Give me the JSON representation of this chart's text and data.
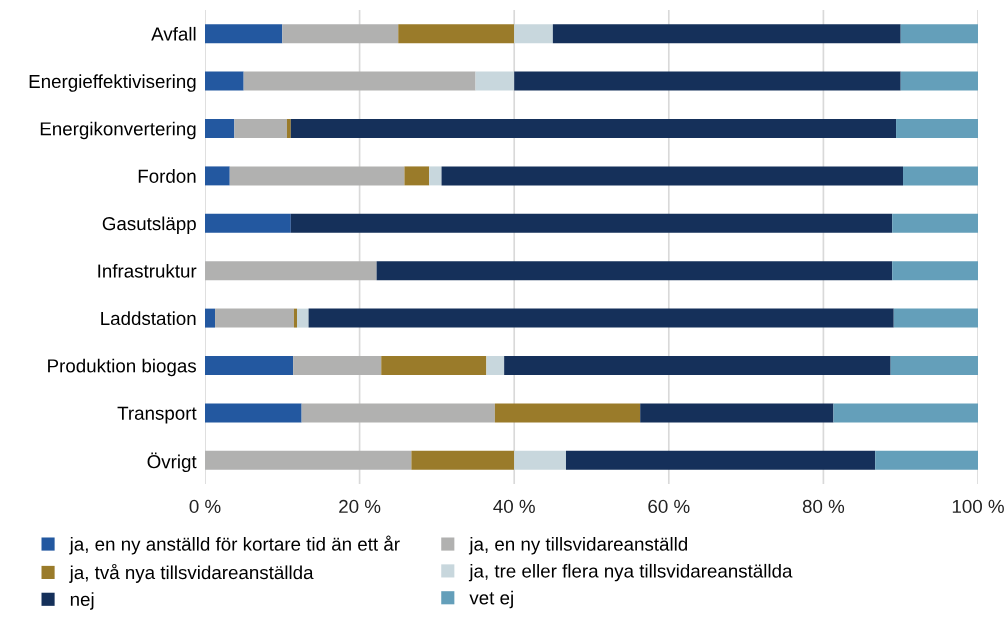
{
  "chart_data": {
    "type": "bar",
    "orientation": "horizontal",
    "stacked": true,
    "categories": [
      "Avfall",
      "Energieffektivisering",
      "Energikonvertering",
      "Fordon",
      "Gasutsläpp",
      "Infrastruktur",
      "Laddstation",
      "Produktion biogas",
      "Transport",
      "Övrigt"
    ],
    "series": [
      {
        "name": "ja, en ny anställd för kortare tid än ett år",
        "color": "#2358a0",
        "values": [
          10,
          5,
          3.8,
          3.2,
          11.1,
          0,
          1.3,
          11.4,
          12.5,
          0
        ]
      },
      {
        "name": "ja, en ny tillsvidareanställd",
        "color": "#b1b1b0",
        "values": [
          15,
          30,
          6.8,
          22.6,
          0,
          22.2,
          10.2,
          11.4,
          25.0,
          26.7
        ]
      },
      {
        "name": "ja, två nya tillsvidareanställda",
        "color": "#9a7b2a",
        "values": [
          15,
          0,
          0.5,
          3.2,
          0,
          0,
          0.4,
          13.6,
          18.8,
          13.3
        ]
      },
      {
        "name": "ja, tre eller flera nya tillsvidareanställda",
        "color": "#c8d7dd",
        "values": [
          5,
          5,
          0,
          1.6,
          0,
          0,
          1.5,
          2.3,
          0,
          6.7
        ]
      },
      {
        "name": "nej",
        "color": "#15305a",
        "values": [
          45,
          50,
          78.3,
          59.7,
          77.8,
          66.7,
          75.7,
          50.0,
          25.0,
          40.0
        ]
      },
      {
        "name": "vet ej",
        "color": "#649fba",
        "values": [
          10,
          10,
          10.6,
          9.7,
          11.1,
          11.1,
          10.9,
          11.4,
          18.8,
          13.3
        ]
      }
    ],
    "xlim": [
      0,
      100
    ],
    "xticks": [
      {
        "value": 0,
        "label": "0 %"
      },
      {
        "value": 20,
        "label": "20 %"
      },
      {
        "value": 40,
        "label": "40 %"
      },
      {
        "value": 60,
        "label": "60 %"
      },
      {
        "value": 80,
        "label": "80 %"
      },
      {
        "value": 100,
        "label": "100 %"
      }
    ],
    "grid": "x",
    "legend": "bottom"
  }
}
